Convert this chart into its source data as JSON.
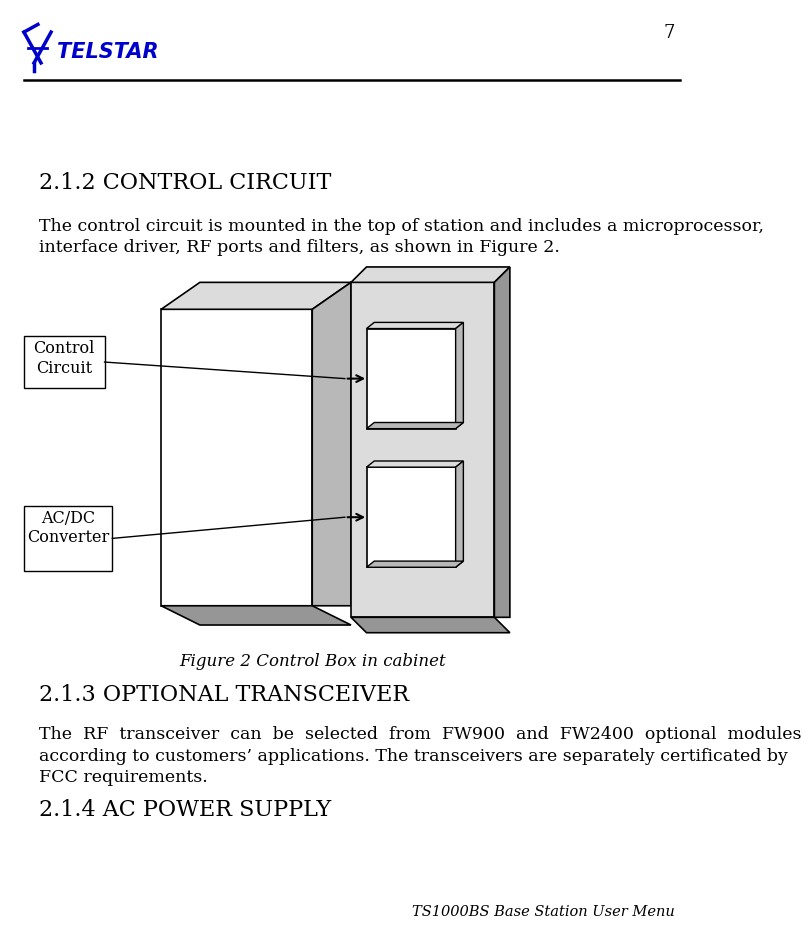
{
  "page_number": "7",
  "logo_color": "#0000CC",
  "background_color": "#FFFFFF",
  "line_color": "#000000",
  "heading1": "2.1.2 CONTROL CIRCUIT",
  "para1_line1": "The control circuit is mounted in the top of station and includes a microprocessor,",
  "para1_line2": "interface driver, RF ports and filters, as shown in Figure 2.",
  "figure_caption": "Figure 2 Control Box in cabinet",
  "label1": "Control\nCircuit",
  "label2": "AC/DC\nConverter",
  "heading2": "2.1.3 OPTIONAL TRANSCEIVER",
  "para2_line1": "The  RF  transceiver  can  be  selected  from  FW900  and  FW2400  optional  modules",
  "para2_line2": "according to customers’ applications. The transceivers are separately certificated by",
  "para2_line3": "FCC requirements.",
  "heading3": "2.1.4 AC POWER SUPPLY",
  "footer_text": "TS1000BS Base Station User Menu",
  "body_fontsize": 12.5,
  "heading_fontsize": 16,
  "gray_light": "#DCDCDC",
  "gray_mid": "#B8B8B8",
  "gray_dark": "#969696",
  "white": "#FFFFFF"
}
